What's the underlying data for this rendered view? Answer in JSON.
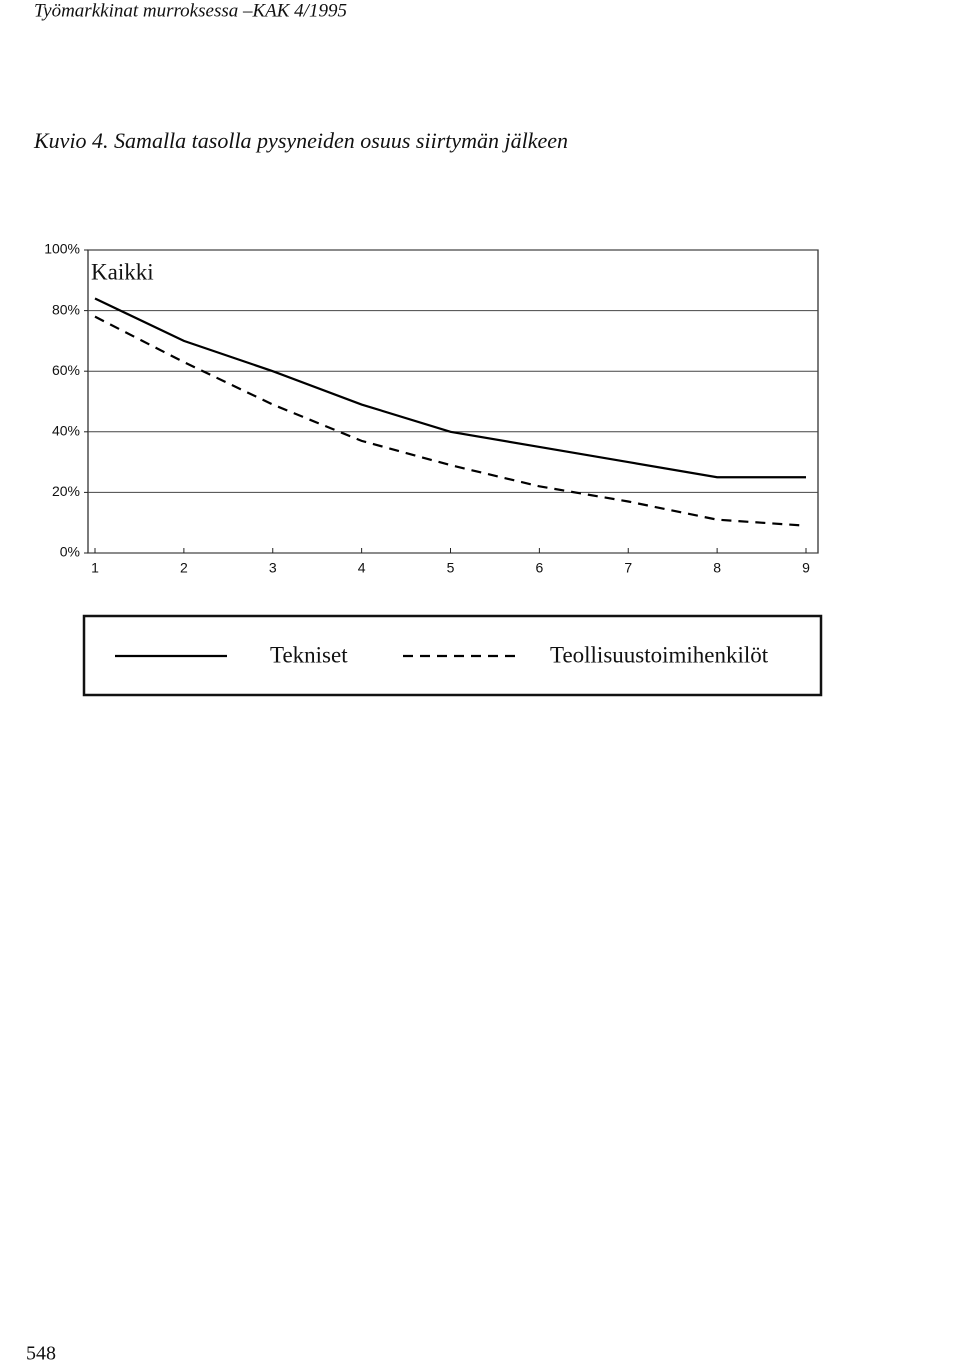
{
  "header": "Työmarkkinat murroksessa –KAK 4/1995",
  "caption": "Kuvio 4. Samalla tasolla pysyneiden osuus siirtymän jälkeen",
  "page_number": "548",
  "chart_data": {
    "type": "line",
    "annotation": "Kaikki",
    "categories": [
      "1",
      "2",
      "3",
      "4",
      "5",
      "6",
      "7",
      "8",
      "9"
    ],
    "series": [
      {
        "name": "Tekniset",
        "color": "#000000",
        "style": "solid",
        "values": [
          84,
          70,
          60,
          49,
          40,
          35,
          30,
          25,
          25
        ]
      },
      {
        "name": "Teollisuustoimihenkilöt",
        "color": "#000000",
        "style": "dashed",
        "values": [
          78,
          63,
          49,
          37,
          29,
          22,
          17,
          11,
          9
        ]
      }
    ],
    "ylim": [
      0,
      100
    ],
    "yticks": [
      {
        "value": 0,
        "label": "0%"
      },
      {
        "value": 20,
        "label": "20%"
      },
      {
        "value": 40,
        "label": "40%"
      },
      {
        "value": 60,
        "label": "60%"
      },
      {
        "value": 80,
        "label": "80%"
      },
      {
        "value": 100,
        "label": "100%"
      }
    ],
    "grid": true,
    "legend": "bottom"
  }
}
